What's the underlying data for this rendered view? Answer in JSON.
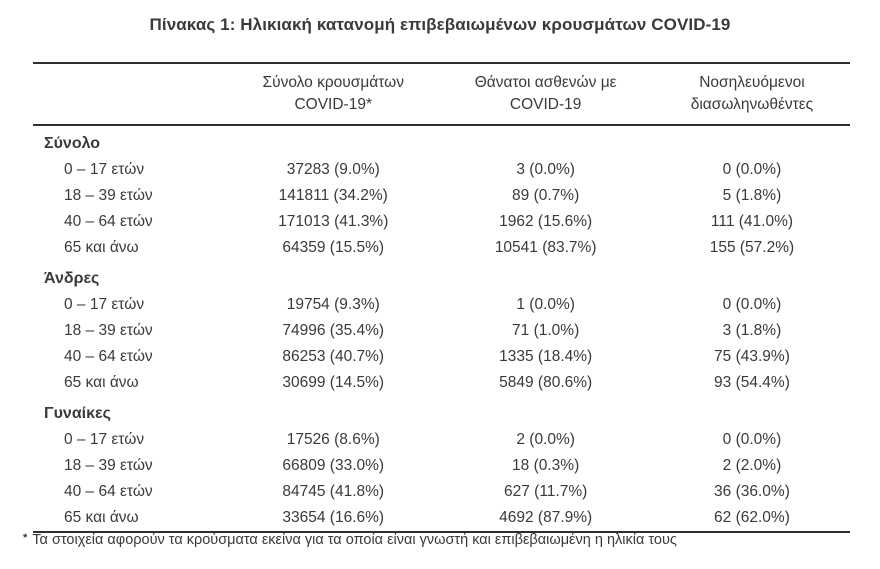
{
  "title": "Πίνακας 1: Ηλικιακή κατανομή επιβεβαιωμένων κρουσμάτων COVID-19",
  "table": {
    "columns": [
      {
        "line1": "Σύνολο κρουσμάτων",
        "line2": "COVID-19*"
      },
      {
        "line1": "Θάνατοι ασθενών με",
        "line2": "COVID-19"
      },
      {
        "line1": "Νοσηλευόμενοι",
        "line2": "διασωληνωθέντες"
      }
    ],
    "sections": [
      {
        "label": "Σύνολο",
        "rows": [
          {
            "age": "0 – 17 ετών",
            "cases": "37283 (9.0%)",
            "deaths": "3 (0.0%)",
            "intubated": "0 (0.0%)"
          },
          {
            "age": "18 – 39 ετών",
            "cases": "141811 (34.2%)",
            "deaths": "89 (0.7%)",
            "intubated": "5 (1.8%)"
          },
          {
            "age": "40 – 64 ετών",
            "cases": "171013 (41.3%)",
            "deaths": "1962 (15.6%)",
            "intubated": "111 (41.0%)"
          },
          {
            "age": "65 και άνω",
            "cases": "64359 (15.5%)",
            "deaths": "10541 (83.7%)",
            "intubated": "155 (57.2%)"
          }
        ]
      },
      {
        "label": "Άνδρες",
        "rows": [
          {
            "age": "0 – 17 ετών",
            "cases": "19754 (9.3%)",
            "deaths": "1 (0.0%)",
            "intubated": "0 (0.0%)"
          },
          {
            "age": "18 – 39 ετών",
            "cases": "74996 (35.4%)",
            "deaths": "71 (1.0%)",
            "intubated": "3 (1.8%)"
          },
          {
            "age": "40 – 64 ετών",
            "cases": "86253 (40.7%)",
            "deaths": "1335 (18.4%)",
            "intubated": "75 (43.9%)"
          },
          {
            "age": "65 και άνω",
            "cases": "30699 (14.5%)",
            "deaths": "5849 (80.6%)",
            "intubated": "93 (54.4%)"
          }
        ]
      },
      {
        "label": "Γυναίκες",
        "rows": [
          {
            "age": "0 – 17 ετών",
            "cases": "17526 (8.6%)",
            "deaths": "2 (0.0%)",
            "intubated": "0 (0.0%)"
          },
          {
            "age": "18 – 39 ετών",
            "cases": "66809 (33.0%)",
            "deaths": "18 (0.3%)",
            "intubated": "2 (2.0%)"
          },
          {
            "age": "40 – 64 ετών",
            "cases": "84745 (41.8%)",
            "deaths": "627 (11.7%)",
            "intubated": "36 (36.0%)"
          },
          {
            "age": "65 και άνω",
            "cases": "33654 (16.6%)",
            "deaths": "4692 (87.9%)",
            "intubated": "62 (62.0%)"
          }
        ]
      }
    ]
  },
  "footnote": {
    "marker": "*",
    "text": "Τα στοιχεία αφορούν τα κρούσματα εκείνα για τα οποία είναι γνωστή και επιβεβαιωμένη η ηλικία τους"
  },
  "colors": {
    "text": "#3a3a3a",
    "rule": "#2e2e2e",
    "background": "#ffffff"
  }
}
